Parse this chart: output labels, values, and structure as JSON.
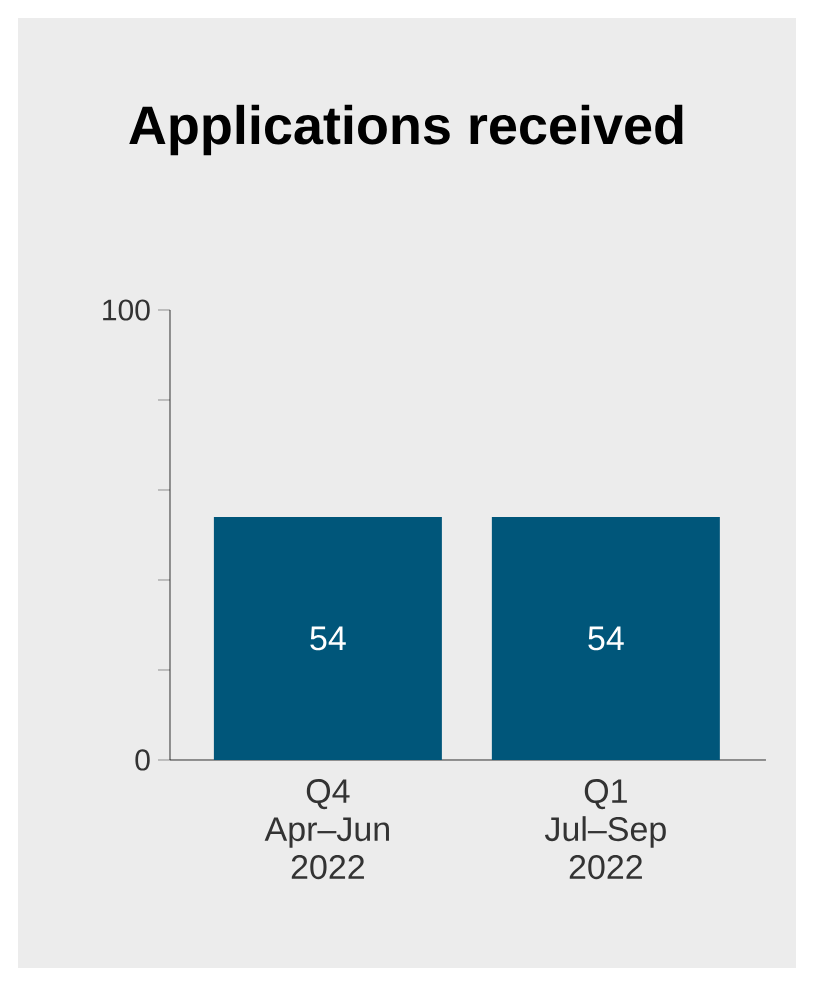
{
  "chart_data": {
    "type": "bar",
    "title": "Applications received",
    "categories": [
      "Q4 Apr–Jun 2022",
      "Q1 Jul–Sep 2022"
    ],
    "values": [
      54,
      54
    ],
    "color": "#00567a",
    "data_labels": true,
    "grid": false,
    "ylim": [
      0,
      100
    ],
    "yticks": [
      0,
      {
        "value": 20,
        "label": null
      },
      {
        "value": 40,
        "label": null
      },
      {
        "value": 60,
        "label": null
      },
      {
        "value": 80,
        "label": null
      },
      100
    ]
  }
}
